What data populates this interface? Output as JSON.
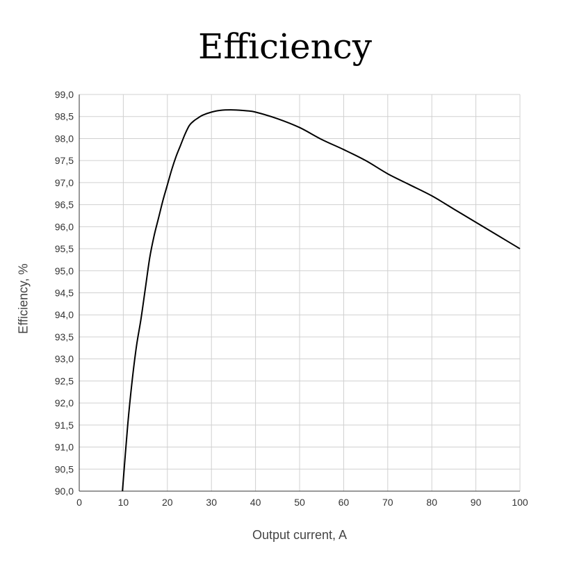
{
  "chart_data": {
    "type": "line",
    "title": "Efficiency",
    "xlabel": "Output current, A",
    "ylabel": "Efficiency, %",
    "xlim": [
      0,
      100
    ],
    "ylim": [
      90.0,
      99.0
    ],
    "x_ticks": [
      "0",
      "10",
      "20",
      "30",
      "40",
      "50",
      "60",
      "70",
      "80",
      "90",
      "100"
    ],
    "y_ticks": [
      "99,0",
      "98,5",
      "98,0",
      "97,5",
      "97,0",
      "96,5",
      "96,0",
      "95,5",
      "95,0",
      "94,5",
      "94,0",
      "93,5",
      "93,0",
      "92,5",
      "92,0",
      "91,5",
      "91,0",
      "90,5",
      "90,0"
    ],
    "grid": true,
    "legend": "none",
    "series": [
      {
        "x": [
          9.8,
          11,
          12,
          13,
          14,
          15,
          16,
          17,
          18,
          19,
          20,
          21,
          22,
          23,
          24,
          25,
          26,
          27,
          28,
          30,
          32,
          35,
          38,
          40,
          45,
          50,
          55,
          60,
          65,
          70,
          75,
          80,
          85,
          90,
          95,
          100
        ],
        "y": [
          90.0,
          91.5,
          92.5,
          93.3,
          93.9,
          94.6,
          95.3,
          95.8,
          96.2,
          96.6,
          96.95,
          97.3,
          97.6,
          97.85,
          98.1,
          98.3,
          98.4,
          98.47,
          98.53,
          98.6,
          98.64,
          98.65,
          98.63,
          98.6,
          98.45,
          98.25,
          97.98,
          97.75,
          97.5,
          97.2,
          96.95,
          96.7,
          96.4,
          96.1,
          95.8,
          95.5
        ],
        "color": "#000000"
      }
    ]
  }
}
